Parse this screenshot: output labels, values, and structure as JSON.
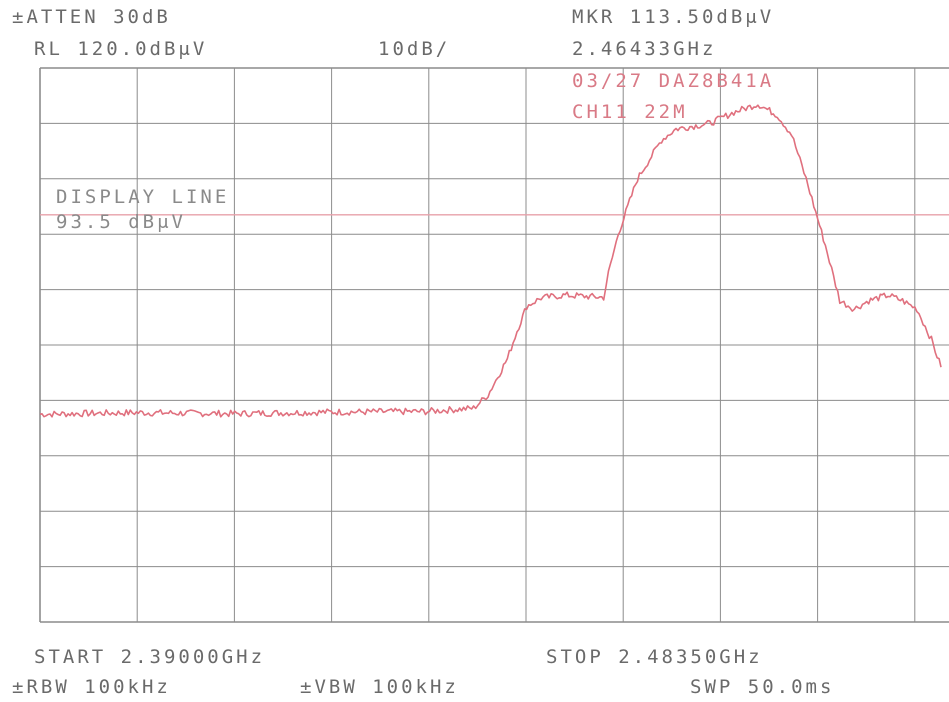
{
  "header": {
    "atten": "±ATTEN 30dB",
    "ref_level": "RL 120.0dBμV",
    "scale": "10dB/",
    "marker_level": "MKR 113.50dBμV",
    "marker_freq": "2.46433GHz",
    "note_id": "03/27 DAZ8B41A",
    "note_ch": "CH11 22M"
  },
  "display_line": {
    "label": "DISPLAY LINE",
    "value": "93.5 dBμV"
  },
  "footer": {
    "start": "START 2.39000GHz",
    "stop": "STOP 2.48350GHz",
    "rbw": "±RBW 100kHz",
    "vbw": "±VBW 100kHz",
    "sweep": "SWP 50.0ms"
  },
  "colors": {
    "trace": "#e0707e",
    "grid": "#8c8c8c",
    "display_line": "#e7a0aa",
    "text": "#6a6a6a"
  },
  "chart_data": {
    "type": "line",
    "x_unit": "GHz",
    "y_unit": "dBμV",
    "xlim": [
      2.39,
      2.4835
    ],
    "ylim": [
      20,
      120
    ],
    "grid": true,
    "marker": {
      "x": 2.46433,
      "y": 113.5
    },
    "display_line_y": 93.5,
    "series": [
      {
        "x": [
          2.39,
          2.4,
          2.41,
          2.42,
          2.43,
          2.435,
          2.4365,
          2.4385,
          2.4395,
          2.4405,
          2.442,
          2.4445,
          2.4465,
          2.4485,
          2.449,
          2.45,
          2.452,
          2.4545,
          2.456,
          2.4595,
          2.462,
          2.4645,
          2.4665,
          2.468,
          2.4695,
          2.4715,
          2.473,
          2.4745,
          2.476,
          2.478,
          2.4795,
          2.481,
          2.4825,
          2.4835
        ],
        "y": [
          57.5,
          57.8,
          57.6,
          57.9,
          58.0,
          58.6,
          61.0,
          67.5,
          72.5,
          77.0,
          78.5,
          79.0,
          78.8,
          78.6,
          83.0,
          90.0,
          100.0,
          107.0,
          109.0,
          110.0,
          112.0,
          113.5,
          111.5,
          108.0,
          100.0,
          88.0,
          78.0,
          76.5,
          78.0,
          79.0,
          78.0,
          76.5,
          71.0,
          66.0
        ]
      }
    ]
  }
}
